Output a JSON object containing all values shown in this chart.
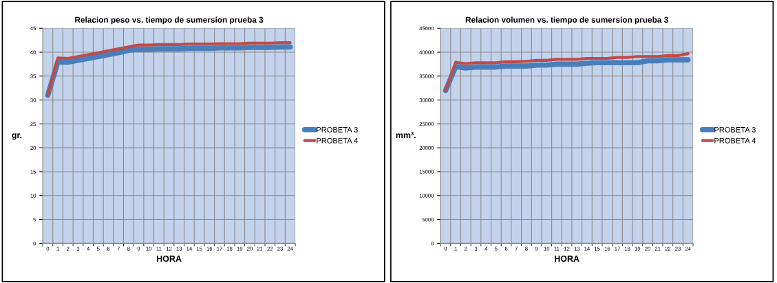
{
  "chart_data": [
    {
      "type": "line",
      "title": "Relacion peso vs. tiempo de sumersíon prueba 3",
      "xlabel": "HORA",
      "ylabel": "gr.",
      "categories": [
        "0",
        "1",
        "2",
        "3",
        "4",
        "5",
        "6",
        "7",
        "8",
        "9",
        "10",
        "11",
        "12",
        "13",
        "14",
        "15",
        "16",
        "17",
        "18",
        "19",
        "20",
        "21",
        "22",
        "23",
        "24"
      ],
      "series": [
        {
          "name": "PROBETA 3",
          "color": "#4a7ebb",
          "values": [
            31,
            38,
            37.9,
            38.3,
            38.7,
            39.1,
            39.5,
            39.9,
            40.4,
            40.6,
            40.6,
            40.7,
            40.7,
            40.7,
            40.8,
            40.8,
            40.8,
            40.9,
            40.9,
            40.9,
            41,
            41,
            41,
            41.1,
            41.1
          ]
        },
        {
          "name": "PROBETA 4",
          "color": "#be4b48",
          "values": [
            31,
            38.8,
            38.7,
            39.1,
            39.5,
            39.9,
            40.3,
            40.7,
            41.1,
            41.5,
            41.5,
            41.6,
            41.6,
            41.6,
            41.7,
            41.7,
            41.7,
            41.8,
            41.8,
            41.8,
            41.9,
            41.9,
            41.9,
            42,
            42
          ]
        }
      ],
      "ylim": [
        0,
        45
      ],
      "yticks": [
        0,
        5,
        10,
        15,
        20,
        25,
        30,
        35,
        40,
        45
      ],
      "grid": true,
      "legend": "right"
    },
    {
      "type": "line",
      "title": "Relacion volumen vs. tiempo de sumersíon prueba 3",
      "xlabel": "HORA",
      "ylabel": "mm³.",
      "categories": [
        "0",
        "1",
        "2",
        "3",
        "4",
        "5",
        "6",
        "7",
        "8",
        "9",
        "10",
        "11",
        "12",
        "13",
        "14",
        "15",
        "16",
        "17",
        "18",
        "19",
        "20",
        "21",
        "22",
        "23",
        "24"
      ],
      "series": [
        {
          "name": "PROBETA 3",
          "color": "#4a7ebb",
          "values": [
            32000,
            37000,
            36700,
            36900,
            36900,
            36900,
            37100,
            37100,
            37100,
            37300,
            37300,
            37500,
            37500,
            37500,
            37700,
            37800,
            37800,
            37800,
            37800,
            37800,
            38200,
            38200,
            38400,
            38400,
            38400
          ]
        },
        {
          "name": "PROBETA 4",
          "color": "#be4b48",
          "values": [
            32000,
            37900,
            37600,
            37800,
            37800,
            37800,
            38000,
            38000,
            38100,
            38300,
            38300,
            38500,
            38500,
            38500,
            38700,
            38700,
            38700,
            38900,
            38900,
            39100,
            39100,
            39100,
            39300,
            39300,
            39700
          ]
        }
      ],
      "ylim": [
        0,
        45000
      ],
      "yticks": [
        0,
        5000,
        10000,
        15000,
        20000,
        25000,
        30000,
        35000,
        40000,
        45000
      ],
      "grid": true,
      "legend": "right"
    }
  ]
}
